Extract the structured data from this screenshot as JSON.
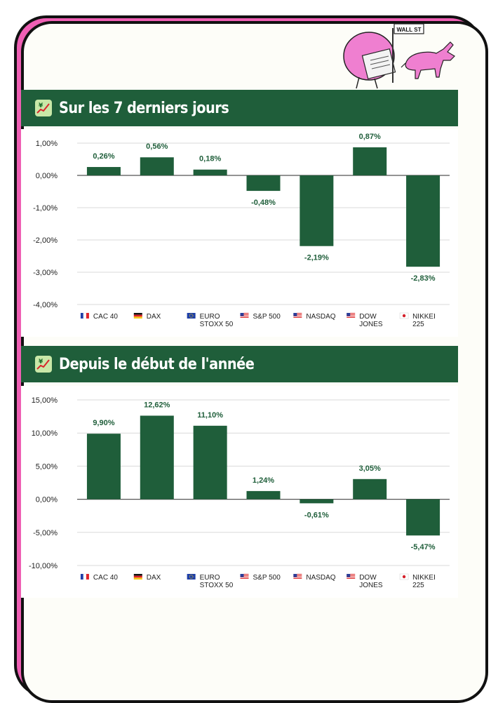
{
  "colors": {
    "bar": "#1f5e3a",
    "banner": "#1f5e3a",
    "label": "#1f5e3a",
    "card_shadow": "#ef5fb4",
    "card_bg": "#fdfdf8"
  },
  "illustration": {
    "sign_text": "WALL ST",
    "icon": "pink-character-reading-newspaper-with-bull-icon"
  },
  "sections": [
    {
      "title": "Sur les 7 derniers jours",
      "icon": "chart-increasing-with-yen-icon"
    },
    {
      "title": "Depuis le début de l'année",
      "icon": "chart-increasing-with-yen-icon"
    }
  ],
  "chart_data": [
    {
      "type": "bar",
      "title": "Sur les 7 derniers jours",
      "categories": [
        "CAC 40",
        "DAX",
        "EURO STOXX 50",
        "S&P 500",
        "NASDAQ",
        "DOW JONES",
        "NIKKEI 225"
      ],
      "category_lines": [
        [
          "CAC 40"
        ],
        [
          "DAX"
        ],
        [
          "EURO",
          "STOXX 50"
        ],
        [
          "S&P 500"
        ],
        [
          "NASDAQ"
        ],
        [
          "DOW",
          "JONES"
        ],
        [
          "NIKKEI",
          "225"
        ]
      ],
      "flags": [
        "fr",
        "de",
        "eu",
        "us",
        "us",
        "us",
        "jp"
      ],
      "values": [
        0.26,
        0.56,
        0.18,
        -0.48,
        -2.19,
        0.87,
        -2.83
      ],
      "data_labels": [
        "0,26%",
        "0,56%",
        "0,18%",
        "-0,48%",
        "-2,19%",
        "0,87%",
        "-2,83%"
      ],
      "yticks": [
        1,
        0,
        -1,
        -2,
        -3,
        -4
      ],
      "ytick_labels": [
        "1,00%",
        "0,00%",
        "-1,00%",
        "-2,00%",
        "-3,00%",
        "-4,00%"
      ],
      "ylim": [
        -4,
        1
      ],
      "xlabel": "",
      "ylabel": "",
      "grid": true
    },
    {
      "type": "bar",
      "title": "Depuis le début de l'année",
      "categories": [
        "CAC 40",
        "DAX",
        "EURO STOXX 50",
        "S&P 500",
        "NASDAQ",
        "DOW JONES",
        "NIKKEI 225"
      ],
      "category_lines": [
        [
          "CAC 40"
        ],
        [
          "DAX"
        ],
        [
          "EURO",
          "STOXX 50"
        ],
        [
          "S&P 500"
        ],
        [
          "NASDAQ"
        ],
        [
          "DOW",
          "JONES"
        ],
        [
          "NIKKEI",
          "225"
        ]
      ],
      "flags": [
        "fr",
        "de",
        "eu",
        "us",
        "us",
        "us",
        "jp"
      ],
      "values": [
        9.9,
        12.62,
        11.1,
        1.24,
        -0.61,
        3.05,
        -5.47
      ],
      "data_labels": [
        "9,90%",
        "12,62%",
        "11,10%",
        "1,24%",
        "-0,61%",
        "3,05%",
        "-5,47%"
      ],
      "yticks": [
        15,
        10,
        5,
        0,
        -5,
        -10
      ],
      "ytick_labels": [
        "15,00%",
        "10,00%",
        "5,00%",
        "0,00%",
        "-5,00%",
        "-10,00%"
      ],
      "ylim": [
        -10,
        15
      ],
      "xlabel": "",
      "ylabel": "",
      "grid": true
    }
  ]
}
